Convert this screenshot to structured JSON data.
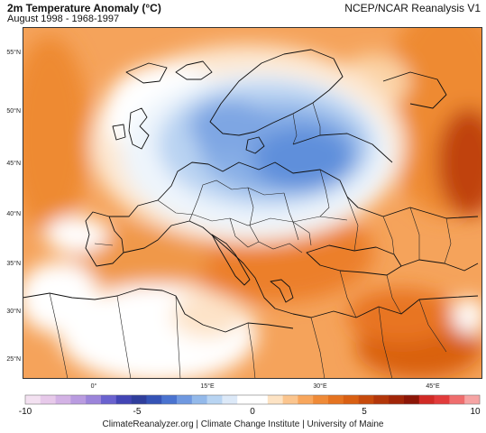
{
  "header": {
    "title": "2m Temperature Anomaly (°C)",
    "subtitle": "August 1998 - 1968-1997",
    "source": "NCEP/NCAR Reanalysis V1"
  },
  "axes": {
    "lat_labels": [
      "55°N",
      "50°N",
      "45°N",
      "40°N",
      "35°N",
      "30°N",
      "25°N"
    ],
    "lon_labels": [
      "0°",
      "15°E",
      "30°E",
      "45°E"
    ]
  },
  "colorbar": {
    "ticks": [
      "-10",
      "-5",
      "0",
      "5",
      "10"
    ],
    "colors": [
      "#f3e1f1",
      "#e7c9ea",
      "#d3b2e5",
      "#b99be0",
      "#9b84da",
      "#6a62cf",
      "#4245b5",
      "#2f3e9c",
      "#3553b6",
      "#4a73d0",
      "#6f98e0",
      "#93b9ea",
      "#b8d4f2",
      "#dce9f8",
      "#ffffff",
      "#ffffff",
      "#fde3c4",
      "#fbc58e",
      "#f8a65c",
      "#ef8a37",
      "#e57320",
      "#d95f12",
      "#c74a0c",
      "#b3360a",
      "#a12508",
      "#8c1607",
      "#d12a25",
      "#e23b3b",
      "#ef6d6d",
      "#f6a4a4"
    ]
  },
  "footer": {
    "credit": "ClimateReanalyzer.org | Climate Change Institute | University of Maine"
  }
}
